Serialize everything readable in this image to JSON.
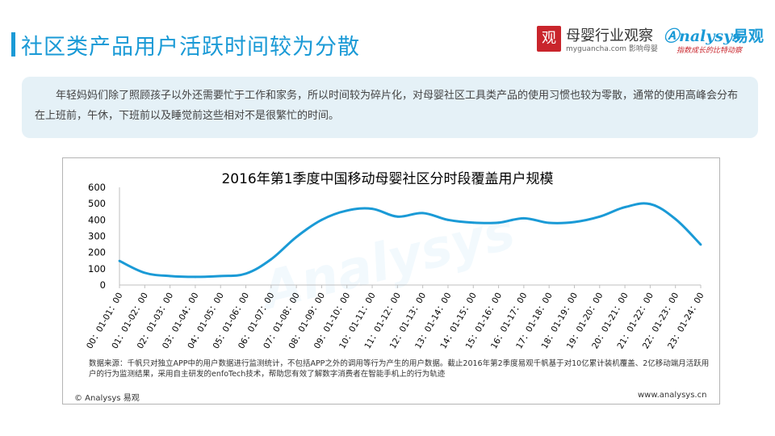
{
  "header": {
    "title": "社区类产品用户活跃时间较为分散",
    "logo1": {
      "mark": "观",
      "name": "母婴行业观察",
      "sub": "myguancha.com 影响母婴"
    },
    "logo2": {
      "mark": "nalysys",
      "name": "易观",
      "tagline": "指数成长的比特动察"
    }
  },
  "description": "年轻妈妈们除了照顾孩子以外还需要忙于工作和家务，所以时间较为碎片化，对母婴社区工具类产品的使用习惯也较为零散，通常的使用高峰会分布在上班前，午休，下班前以及睡觉前这些相对不是很繁忙的时间。",
  "chart_data": {
    "type": "line",
    "title": "2016年第1季度中国移动母婴社区分时段覆盖用户规模",
    "categories": [
      "00：01-01：00",
      "01：01-02：00",
      "02：01-03：00",
      "03：01-04：00",
      "04：01-05：00",
      "05：01-06：00",
      "06：01-07：00",
      "07：01-08：00",
      "08：01-09：00",
      "09：01-10：00",
      "10：01-11：00",
      "11：01-12：00",
      "12：01-13：00",
      "13：01-14：00",
      "14：01-15：00",
      "15：01-16：00",
      "16：01-17：00",
      "17：01-18：00",
      "18：01-19：00",
      "19：01-20：00",
      "20：01-21：00",
      "21：01-22：00",
      "22：01-23：00",
      "23：01-24：00"
    ],
    "series": [
      {
        "values": [
          148,
          75,
          55,
          50,
          55,
          70,
          158,
          295,
          400,
          457,
          468,
          420,
          442,
          400,
          383,
          383,
          410,
          382,
          387,
          420,
          478,
          497,
          405,
          248
        ]
      }
    ],
    "yticks": [
      "0",
      "100",
      "200",
      "300",
      "400",
      "500",
      "600"
    ],
    "ylim": [
      0,
      600
    ],
    "color": "#1a9ad6",
    "grid": false,
    "legend": "none"
  },
  "footer": {
    "note": "数据来源：千帆只对独立APP中的用户数据进行监测统计，不包括APP之外的调用等行为产生的用户数据。截止2016年第2季度易观千帆基于对10亿累计装机覆盖、2亿移动端月活跃用户的行为监测结果，采用自主研发的enfoTech技术，帮助您有效了解数字消费者在智能手机上的行为轨迹",
    "copyright": "© Analysys 易观",
    "website": "www.analysys.cn"
  },
  "watermark": "Analysys"
}
